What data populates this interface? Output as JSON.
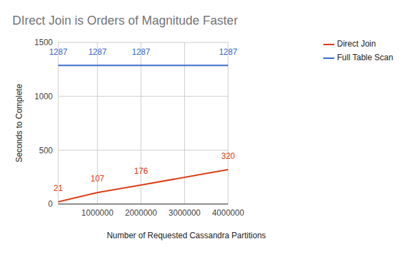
{
  "chart_data": {
    "type": "line",
    "title": "DIrect Join is Orders of Magnitude Faster",
    "x_label": "Number of Requested Cassandra Partitions",
    "y_label": "Seconds to Complete",
    "x": [
      100000,
      1000000,
      2000000,
      4000000
    ],
    "series": [
      {
        "name": "Full Table Scan",
        "color": "#3366cc",
        "values": [
          1287,
          1287,
          1287,
          1287
        ]
      },
      {
        "name": "Direct Join",
        "color": "#dc3912",
        "values": [
          21,
          107,
          176,
          320
        ]
      }
    ],
    "xlim": [
      100000,
      4000000
    ],
    "xticks": [
      1000000,
      2000000,
      3000000,
      4000000
    ],
    "ylim": [
      0,
      1500
    ],
    "yticks": [
      0,
      500,
      1000,
      1500
    ],
    "grid": true,
    "legend": "right",
    "data_labels": true
  }
}
